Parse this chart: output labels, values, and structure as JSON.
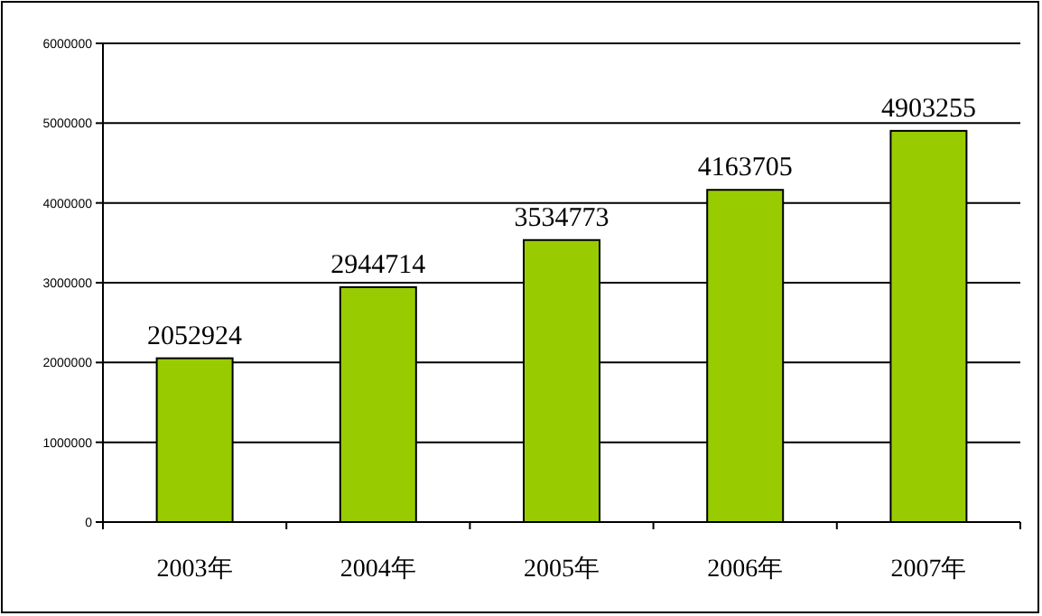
{
  "chart_data": {
    "type": "bar",
    "categories": [
      "2003年",
      "2004年",
      "2005年",
      "2006年",
      "2007年"
    ],
    "values": [
      2052924,
      2944714,
      3534773,
      4163705,
      4903255
    ],
    "color": "#99cc00",
    "ylim": [
      0,
      6000000
    ],
    "yticks": [
      0,
      1000000,
      2000000,
      3000000,
      4000000,
      5000000,
      6000000
    ],
    "grid": "y",
    "data_labels": true
  }
}
